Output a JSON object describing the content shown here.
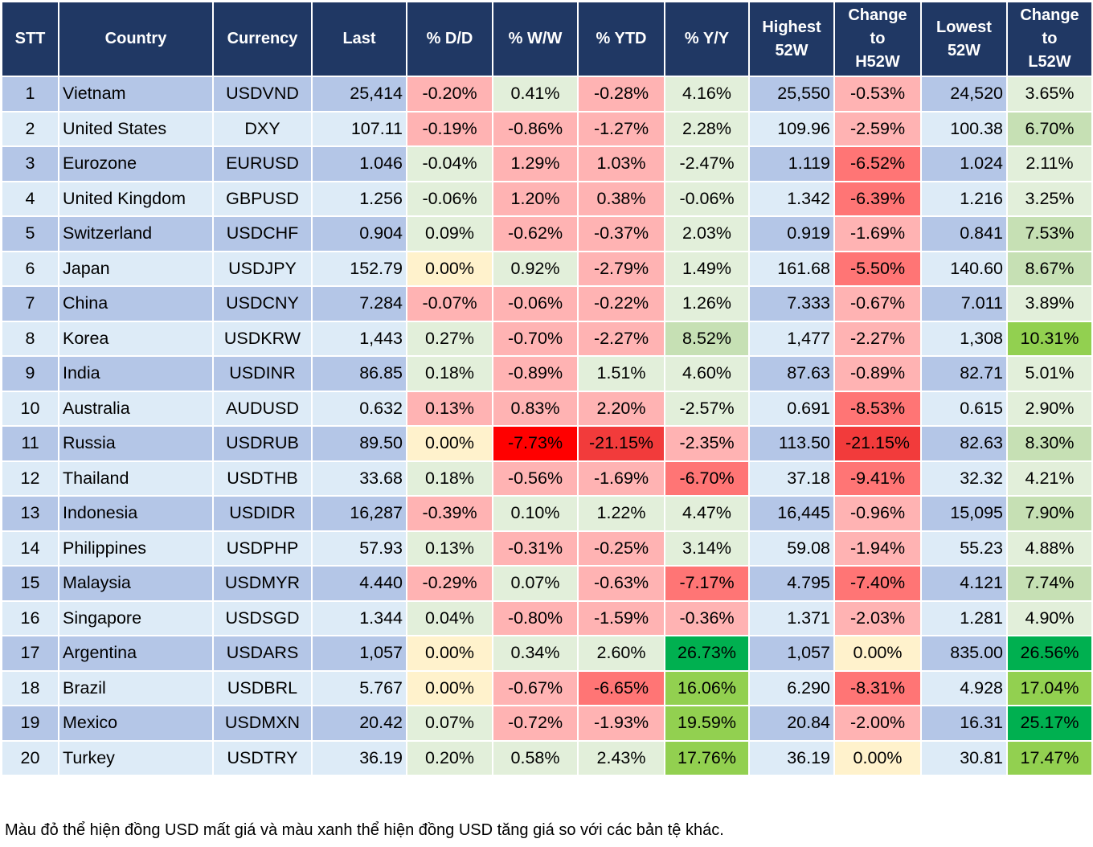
{
  "headers": [
    "STT",
    "Country",
    "Currency",
    "Last",
    "% D/D",
    "% W/W",
    "% YTD",
    "% Y/Y",
    "Highest 52W",
    "Change to H52W",
    "Lowest 52W",
    "Change to L52W"
  ],
  "color_legend": {
    "r1": "#ffb3b3",
    "r2": "#ff7575",
    "r3": "#f23b3b",
    "r4": "#ff0000",
    "g1": "#e2efda",
    "g2": "#c6e0b4",
    "g3": "#92d050",
    "g4": "#00b050",
    "y": "#fff2cc",
    "header": "#203864",
    "row_odd": "#b4c6e7",
    "row_even": "#ddebf7"
  },
  "rows": [
    {
      "stt": "1",
      "country": "Vietnam",
      "currency": "USDVND",
      "last": "25,414",
      "dd": "-0.20%",
      "ww": "0.41%",
      "ytd": "-0.28%",
      "yy": "4.16%",
      "high": "25,550",
      "chh": "-0.53%",
      "low": "24,520",
      "chl": "3.65%",
      "colors": [
        "r1",
        "g1",
        "r1",
        "g1",
        "r1",
        "g1"
      ]
    },
    {
      "stt": "2",
      "country": "United States",
      "currency": "DXY",
      "last": "107.11",
      "dd": "-0.19%",
      "ww": "-0.86%",
      "ytd": "-1.27%",
      "yy": "2.28%",
      "high": "109.96",
      "chh": "-2.59%",
      "low": "100.38",
      "chl": "6.70%",
      "colors": [
        "r1",
        "r1",
        "r1",
        "g1",
        "r1",
        "g2"
      ]
    },
    {
      "stt": "3",
      "country": "Eurozone",
      "currency": "EURUSD",
      "last": "1.046",
      "dd": "-0.04%",
      "ww": "1.29%",
      "ytd": "1.03%",
      "yy": "-2.47%",
      "high": "1.119",
      "chh": "-6.52%",
      "low": "1.024",
      "chl": "2.11%",
      "colors": [
        "g1",
        "r1",
        "r1",
        "g1",
        "r2",
        "g1"
      ]
    },
    {
      "stt": "4",
      "country": "United Kingdom",
      "currency": "GBPUSD",
      "last": "1.256",
      "dd": "-0.06%",
      "ww": "1.20%",
      "ytd": "0.38%",
      "yy": "-0.06%",
      "high": "1.342",
      "chh": "-6.39%",
      "low": "1.216",
      "chl": "3.25%",
      "colors": [
        "g1",
        "r1",
        "r1",
        "g1",
        "r2",
        "g1"
      ]
    },
    {
      "stt": "5",
      "country": "Switzerland",
      "currency": "USDCHF",
      "last": "0.904",
      "dd": "0.09%",
      "ww": "-0.62%",
      "ytd": "-0.37%",
      "yy": "2.03%",
      "high": "0.919",
      "chh": "-1.69%",
      "low": "0.841",
      "chl": "7.53%",
      "colors": [
        "g1",
        "r1",
        "r1",
        "g1",
        "r1",
        "g2"
      ]
    },
    {
      "stt": "6",
      "country": "Japan",
      "currency": "USDJPY",
      "last": "152.79",
      "dd": "0.00%",
      "ww": "0.92%",
      "ytd": "-2.79%",
      "yy": "1.49%",
      "high": "161.68",
      "chh": "-5.50%",
      "low": "140.60",
      "chl": "8.67%",
      "colors": [
        "y",
        "g1",
        "r1",
        "g1",
        "r2",
        "g2"
      ]
    },
    {
      "stt": "7",
      "country": "China",
      "currency": "USDCNY",
      "last": "7.284",
      "dd": "-0.07%",
      "ww": "-0.06%",
      "ytd": "-0.22%",
      "yy": "1.26%",
      "high": "7.333",
      "chh": "-0.67%",
      "low": "7.011",
      "chl": "3.89%",
      "colors": [
        "r1",
        "r1",
        "r1",
        "g1",
        "r1",
        "g1"
      ]
    },
    {
      "stt": "8",
      "country": "Korea",
      "currency": "USDKRW",
      "last": "1,443",
      "dd": "0.27%",
      "ww": "-0.70%",
      "ytd": "-2.27%",
      "yy": "8.52%",
      "high": "1,477",
      "chh": "-2.27%",
      "low": "1,308",
      "chl": "10.31%",
      "colors": [
        "g1",
        "r1",
        "r1",
        "g2",
        "r1",
        "g3"
      ]
    },
    {
      "stt": "9",
      "country": "India",
      "currency": "USDINR",
      "last": "86.85",
      "dd": "0.18%",
      "ww": "-0.89%",
      "ytd": "1.51%",
      "yy": "4.60%",
      "high": "87.63",
      "chh": "-0.89%",
      "low": "82.71",
      "chl": "5.01%",
      "colors": [
        "g1",
        "r1",
        "g1",
        "g1",
        "r1",
        "g1"
      ]
    },
    {
      "stt": "10",
      "country": "Australia",
      "currency": "AUDUSD",
      "last": "0.632",
      "dd": "0.13%",
      "ww": "0.83%",
      "ytd": "2.20%",
      "yy": "-2.57%",
      "high": "0.691",
      "chh": "-8.53%",
      "low": "0.615",
      "chl": "2.90%",
      "colors": [
        "r1",
        "r1",
        "r1",
        "g1",
        "r2",
        "g1"
      ]
    },
    {
      "stt": "11",
      "country": "Russia",
      "currency": "USDRUB",
      "last": "89.50",
      "dd": "0.00%",
      "ww": "-7.73%",
      "ytd": "-21.15%",
      "yy": "-2.35%",
      "high": "113.50",
      "chh": "-21.15%",
      "low": "82.63",
      "chl": "8.30%",
      "colors": [
        "y",
        "r4",
        "r3",
        "r1",
        "r3",
        "g2"
      ]
    },
    {
      "stt": "12",
      "country": "Thailand",
      "currency": "USDTHB",
      "last": "33.68",
      "dd": "0.18%",
      "ww": "-0.56%",
      "ytd": "-1.69%",
      "yy": "-6.70%",
      "high": "37.18",
      "chh": "-9.41%",
      "low": "32.32",
      "chl": "4.21%",
      "colors": [
        "g1",
        "r1",
        "r1",
        "r2",
        "r2",
        "g1"
      ]
    },
    {
      "stt": "13",
      "country": "Indonesia",
      "currency": "USDIDR",
      "last": "16,287",
      "dd": "-0.39%",
      "ww": "0.10%",
      "ytd": "1.22%",
      "yy": "4.47%",
      "high": "16,445",
      "chh": "-0.96%",
      "low": "15,095",
      "chl": "7.90%",
      "colors": [
        "r1",
        "g1",
        "g1",
        "g1",
        "r1",
        "g2"
      ]
    },
    {
      "stt": "14",
      "country": "Philippines",
      "currency": "USDPHP",
      "last": "57.93",
      "dd": "0.13%",
      "ww": "-0.31%",
      "ytd": "-0.25%",
      "yy": "3.14%",
      "high": "59.08",
      "chh": "-1.94%",
      "low": "55.23",
      "chl": "4.88%",
      "colors": [
        "g1",
        "r1",
        "r1",
        "g1",
        "r1",
        "g1"
      ]
    },
    {
      "stt": "15",
      "country": "Malaysia",
      "currency": "USDMYR",
      "last": "4.440",
      "dd": "-0.29%",
      "ww": "0.07%",
      "ytd": "-0.63%",
      "yy": "-7.17%",
      "high": "4.795",
      "chh": "-7.40%",
      "low": "4.121",
      "chl": "7.74%",
      "colors": [
        "r1",
        "g1",
        "r1",
        "r2",
        "r2",
        "g2"
      ]
    },
    {
      "stt": "16",
      "country": "Singapore",
      "currency": "USDSGD",
      "last": "1.344",
      "dd": "0.04%",
      "ww": "-0.80%",
      "ytd": "-1.59%",
      "yy": "-0.36%",
      "high": "1.371",
      "chh": "-2.03%",
      "low": "1.281",
      "chl": "4.90%",
      "colors": [
        "g1",
        "r1",
        "r1",
        "r1",
        "r1",
        "g1"
      ]
    },
    {
      "stt": "17",
      "country": "Argentina",
      "currency": "USDARS",
      "last": "1,057",
      "dd": "0.00%",
      "ww": "0.34%",
      "ytd": "2.60%",
      "yy": "26.73%",
      "high": "1,057",
      "chh": "0.00%",
      "low": "835.00",
      "chl": "26.56%",
      "colors": [
        "y",
        "g1",
        "g1",
        "g4",
        "y",
        "g4"
      ]
    },
    {
      "stt": "18",
      "country": "Brazil",
      "currency": "USDBRL",
      "last": "5.767",
      "dd": "0.00%",
      "ww": "-0.67%",
      "ytd": "-6.65%",
      "yy": "16.06%",
      "high": "6.290",
      "chh": "-8.31%",
      "low": "4.928",
      "chl": "17.04%",
      "colors": [
        "y",
        "r1",
        "r2",
        "g3",
        "r2",
        "g3"
      ]
    },
    {
      "stt": "19",
      "country": "Mexico",
      "currency": "USDMXN",
      "last": "20.42",
      "dd": "0.07%",
      "ww": "-0.72%",
      "ytd": "-1.93%",
      "yy": "19.59%",
      "high": "20.84",
      "chh": "-2.00%",
      "low": "16.31",
      "chl": "25.17%",
      "colors": [
        "g1",
        "r1",
        "r1",
        "g3",
        "r1",
        "g4"
      ]
    },
    {
      "stt": "20",
      "country": "Turkey",
      "currency": "USDTRY",
      "last": "36.19",
      "dd": "0.20%",
      "ww": "0.58%",
      "ytd": "2.43%",
      "yy": "17.76%",
      "high": "36.19",
      "chh": "0.00%",
      "low": "30.81",
      "chl": "17.47%",
      "colors": [
        "g1",
        "g1",
        "g1",
        "g3",
        "y",
        "g3"
      ]
    }
  ],
  "note": "Màu đỏ thể hiện đồng USD mất giá và màu xanh thể hiện đồng USD tăng giá so với các bản tệ khác."
}
